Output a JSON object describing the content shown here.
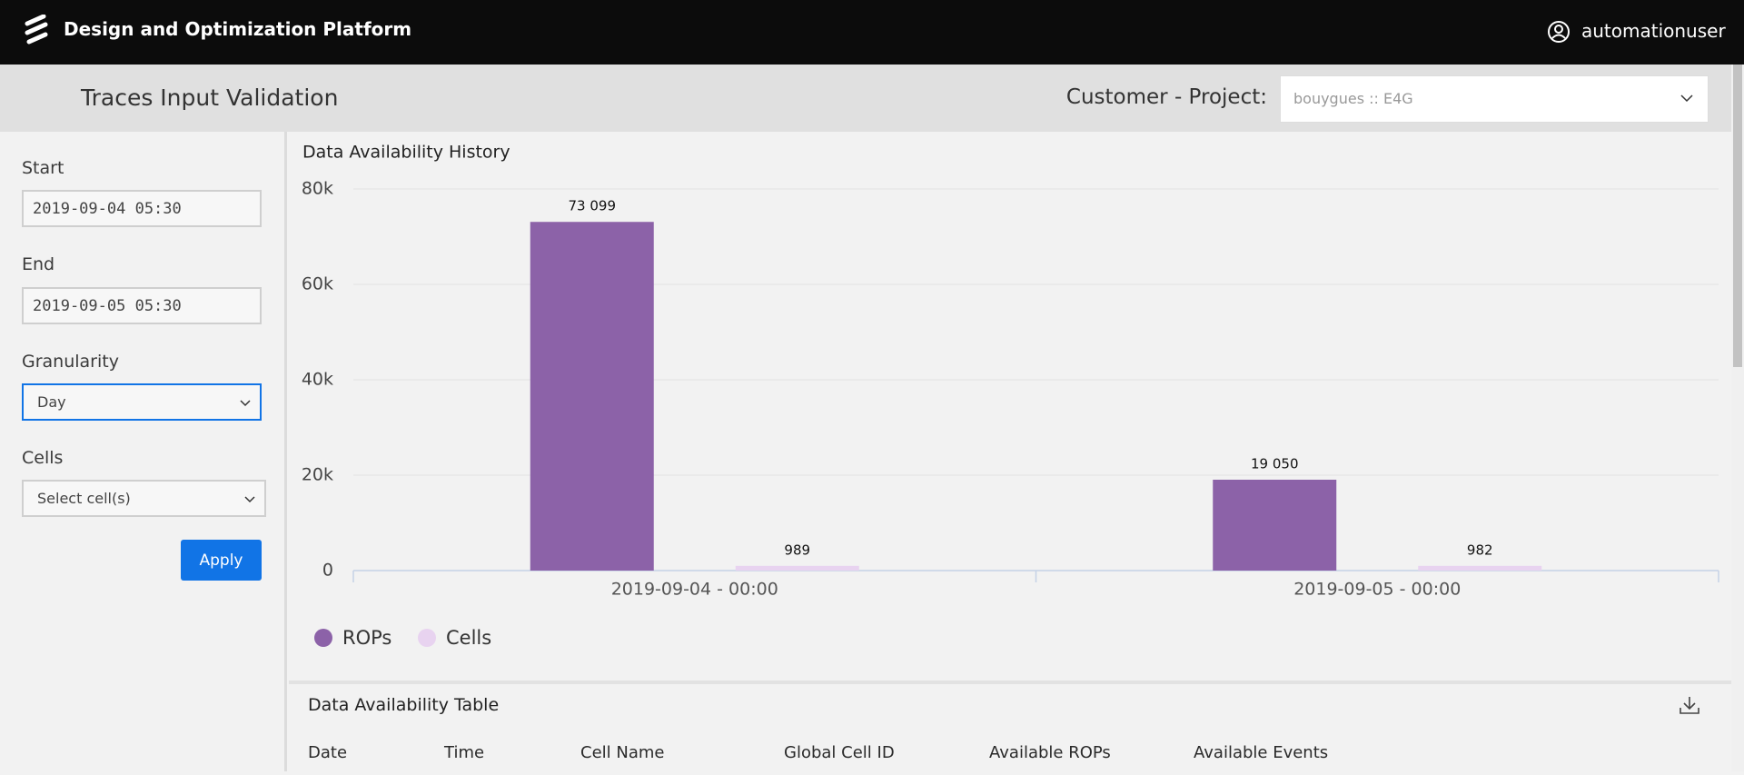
{
  "header": {
    "title": "Design and Optimization Platform",
    "user": "automationuser"
  },
  "subheader": {
    "title": "Traces Input Validation",
    "project_label": "Customer - Project:",
    "project_value": "bouygues :: E4G"
  },
  "sidebar": {
    "start_label": "Start",
    "start_value": "2019-09-04 05:30",
    "end_label": "End",
    "end_value": "2019-09-05 05:30",
    "granularity_label": "Granularity",
    "granularity_value": "Day",
    "cells_label": "Cells",
    "cells_placeholder": "Select cell(s)",
    "apply": "Apply"
  },
  "chart_data": {
    "type": "bar",
    "title": "Data Availability History",
    "categories": [
      "2019-09-04 - 00:00",
      "2019-09-05 - 00:00"
    ],
    "series": [
      {
        "name": "ROPs",
        "color": "#8c62a8",
        "values": [
          73099,
          19050
        ],
        "value_labels": [
          "73 099",
          "19 050"
        ]
      },
      {
        "name": "Cells",
        "color": "#e8d3f0",
        "values": [
          989,
          982
        ]
      }
    ],
    "ylim": [
      0,
      80000
    ],
    "yticks": [
      0,
      {
        "value": 20000,
        "label": "20k"
      },
      {
        "value": 40000,
        "label": "40k"
      },
      {
        "value": 60000,
        "label": "60k"
      },
      {
        "value": 80000,
        "label": "80k"
      }
    ],
    "grid": true,
    "legend": "bottom-left"
  },
  "table": {
    "title": "Data Availability Table",
    "columns": [
      "Date",
      "Time",
      "Cell Name",
      "Global Cell ID",
      "Available ROPs",
      "Available Events"
    ]
  }
}
